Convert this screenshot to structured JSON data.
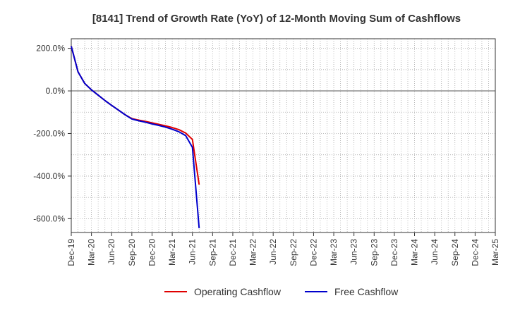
{
  "chart_data": {
    "type": "line",
    "title": "[8141]  Trend of Growth Rate (YoY) of 12-Month Moving Sum of Cashflows",
    "xlabel": "",
    "ylabel": "",
    "x_ticks": [
      "Dec-19",
      "Mar-20",
      "Jun-20",
      "Sep-20",
      "Dec-20",
      "Mar-21",
      "Jun-21",
      "Sep-21",
      "Dec-21",
      "Mar-22",
      "Jun-22",
      "Sep-22",
      "Dec-22",
      "Mar-23",
      "Jun-23",
      "Sep-23",
      "Dec-23",
      "Mar-24",
      "Jun-24",
      "Sep-24",
      "Dec-24",
      "Mar-25"
    ],
    "y_ticks": [
      200,
      0,
      -200,
      -400,
      -600
    ],
    "y_tick_labels": [
      "200.0%",
      "0.0%",
      "-200.0%",
      "-400.0%",
      "-600.0%"
    ],
    "ylim": [
      -665,
      245
    ],
    "grid": true,
    "legend_position": "bottom",
    "x": [
      "Dec-19",
      "Jan-20",
      "Feb-20",
      "Mar-20",
      "Apr-20",
      "May-20",
      "Jun-20",
      "Jul-20",
      "Aug-20",
      "Sep-20",
      "Oct-20",
      "Nov-20",
      "Dec-20",
      "Jan-21",
      "Feb-21",
      "Mar-21",
      "Apr-21",
      "May-21",
      "Jun-21",
      "Jul-21"
    ],
    "series": [
      {
        "name": "Operating Cashflow",
        "color": "#e00000",
        "values": [
          210,
          90,
          35,
          5,
          -20,
          -45,
          -68,
          -90,
          -112,
          -130,
          -137,
          -143,
          -150,
          -157,
          -164,
          -172,
          -182,
          -198,
          -228,
          -440
        ]
      },
      {
        "name": "Free Cashflow",
        "color": "#0000cc",
        "values": [
          210,
          90,
          35,
          5,
          -20,
          -45,
          -68,
          -90,
          -112,
          -132,
          -140,
          -147,
          -155,
          -162,
          -170,
          -180,
          -192,
          -210,
          -265,
          -645
        ]
      }
    ]
  }
}
